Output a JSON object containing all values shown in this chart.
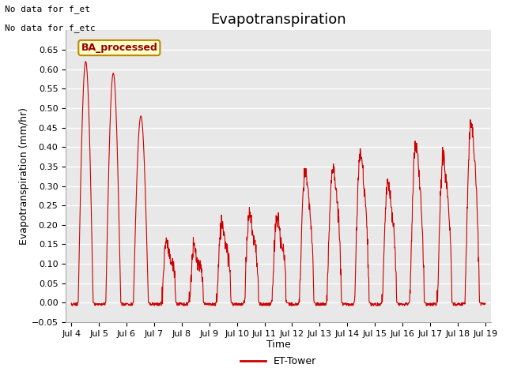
{
  "title": "Evapotranspiration",
  "ylabel": "Evapotranspiration (mm/hr)",
  "xlabel": "Time",
  "annotation_line1": "No data for f_et",
  "annotation_line2": "No data for f_etc",
  "legend_label": "ET-Tower",
  "legend_line_color": "#cc0000",
  "box_label": "BA_processed",
  "box_facecolor": "#ffffcc",
  "box_edgecolor": "#bb8800",
  "box_text_color": "#990000",
  "line_color": "#cc0000",
  "plot_bg_color": "#e8e8e8",
  "grid_color": "#ffffff",
  "ylim": [
    -0.05,
    0.7
  ],
  "yticks": [
    -0.05,
    0.0,
    0.05,
    0.1,
    0.15,
    0.2,
    0.25,
    0.3,
    0.35,
    0.4,
    0.45,
    0.5,
    0.55,
    0.6,
    0.65
  ],
  "xtick_labels": [
    "Jul 4",
    "Jul 5",
    "Jul 6",
    "Jul 7",
    "Jul 8",
    "Jul 9",
    "Jul 10",
    "Jul 11",
    "Jul 12",
    "Jul 13",
    "Jul 14",
    "Jul 15",
    "Jul 16",
    "Jul 17",
    "Jul 18",
    "Jul 19"
  ],
  "title_fontsize": 13,
  "label_fontsize": 9,
  "tick_fontsize": 8,
  "day_peaks": [
    0.62,
    0.59,
    0.48,
    0.15,
    0.13,
    0.2,
    0.22,
    0.21,
    0.33,
    0.35,
    0.38,
    0.3,
    0.4,
    0.37,
    0.46
  ],
  "n_days": 15,
  "pts_per_day": 96
}
